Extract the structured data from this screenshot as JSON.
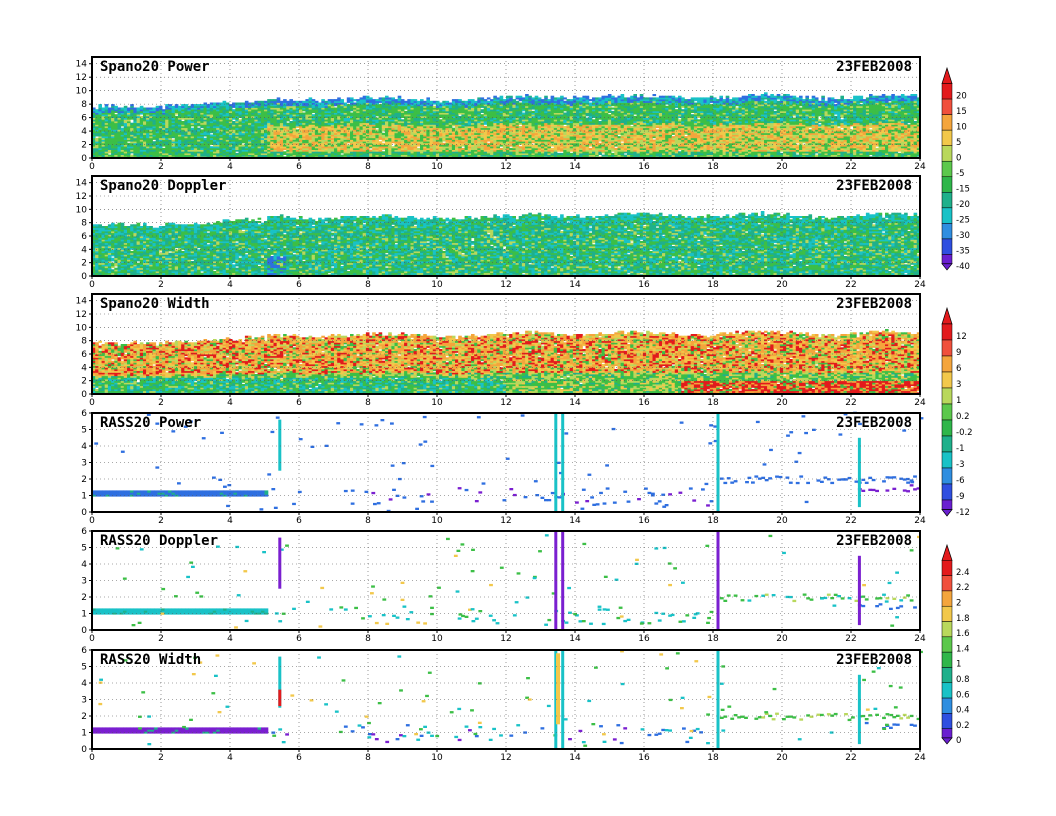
{
  "chart_data": [
    {
      "type": "heatmap",
      "title": "Spano20  Power",
      "date": "23FEB2008",
      "x_ticks": [
        "0",
        "2",
        "4",
        "6",
        "8",
        "10",
        "12",
        "14",
        "16",
        "18",
        "20",
        "22",
        "24"
      ],
      "y_ticks": [
        "0",
        "2",
        "4",
        "6",
        "8",
        "10",
        "12",
        "14"
      ],
      "xlim": [
        0,
        24
      ],
      "ylim": [
        0,
        15
      ],
      "colorbar_id": "cb1"
    },
    {
      "type": "heatmap",
      "title": "Spano20  Doppler",
      "date": "23FEB2008",
      "x_ticks": [
        "0",
        "2",
        "4",
        "6",
        "8",
        "10",
        "12",
        "14",
        "16",
        "18",
        "20",
        "22",
        "24"
      ],
      "y_ticks": [
        "0",
        "2",
        "4",
        "6",
        "8",
        "10",
        "12",
        "14"
      ],
      "xlim": [
        0,
        24
      ],
      "ylim": [
        0,
        15
      ],
      "colorbar_id": "cb1"
    },
    {
      "type": "heatmap",
      "title": "Spano20  Width",
      "date": "23FEB2008",
      "x_ticks": [
        "0",
        "2",
        "4",
        "6",
        "8",
        "10",
        "12",
        "14",
        "16",
        "18",
        "20",
        "22",
        "24"
      ],
      "y_ticks": [
        "0",
        "2",
        "4",
        "6",
        "8",
        "10",
        "12",
        "14"
      ],
      "xlim": [
        0,
        24
      ],
      "ylim": [
        0,
        15
      ],
      "colorbar_id": "cb2"
    },
    {
      "type": "heatmap",
      "title": "RASS20  Power",
      "date": "23FEB2008",
      "x_ticks": [
        "0",
        "2",
        "4",
        "6",
        "8",
        "10",
        "12",
        "14",
        "16",
        "18",
        "20",
        "22",
        "24"
      ],
      "y_ticks": [
        "0",
        "1",
        "2",
        "3",
        "4",
        "5",
        "6"
      ],
      "xlim": [
        0,
        24
      ],
      "ylim": [
        0,
        6
      ],
      "colorbar_id": "cb2"
    },
    {
      "type": "heatmap",
      "title": "RASS20  Doppler",
      "date": "23FEB2008",
      "x_ticks": [
        "0",
        "2",
        "4",
        "6",
        "8",
        "10",
        "12",
        "14",
        "16",
        "18",
        "20",
        "22",
        "24"
      ],
      "y_ticks": [
        "0",
        "1",
        "2",
        "3",
        "4",
        "5",
        "6"
      ],
      "xlim": [
        0,
        24
      ],
      "ylim": [
        0,
        6
      ],
      "colorbar_id": "cb3"
    },
    {
      "type": "heatmap",
      "title": "RASS20  Width",
      "date": "23FEB2008",
      "x_ticks": [
        "0",
        "2",
        "4",
        "6",
        "8",
        "10",
        "12",
        "14",
        "16",
        "18",
        "20",
        "22",
        "24"
      ],
      "y_ticks": [
        "0",
        "1",
        "2",
        "3",
        "4",
        "5",
        "6"
      ],
      "xlim": [
        0,
        24
      ],
      "ylim": [
        0,
        6
      ],
      "colorbar_id": "cb3"
    }
  ],
  "colorbars": [
    {
      "id": "cb1",
      "labels": [
        "20",
        "15",
        "10",
        "5",
        "0",
        "-5",
        "-15",
        "-20",
        "-25",
        "-30",
        "-35",
        "-40"
      ],
      "colors": [
        "#e31a1c",
        "#f0503c",
        "#f4a53c",
        "#f2c84b",
        "#b9d85c",
        "#5cc84c",
        "#2fb64a",
        "#1fb08b",
        "#19c2c7",
        "#2f8ee0",
        "#2f4fe0",
        "#6a1fd0"
      ]
    },
    {
      "id": "cb2",
      "labels": [
        "12",
        "9",
        "6",
        "3",
        "1",
        "0.2",
        "-0.2",
        "-1",
        "-3",
        "-6",
        "-9",
        "-12"
      ],
      "colors": [
        "#e31a1c",
        "#f0503c",
        "#f4a53c",
        "#f2c84b",
        "#b9d85c",
        "#5cc84c",
        "#2fb64a",
        "#1fb08b",
        "#19c2c7",
        "#2f8ee0",
        "#2f4fe0",
        "#6a1fd0"
      ]
    },
    {
      "id": "cb3",
      "labels": [
        "2.4",
        "2.2",
        "2",
        "1.8",
        "1.6",
        "1.4",
        "1",
        "0.8",
        "0.6",
        "0.4",
        "0.2",
        "0"
      ],
      "colors": [
        "#e31a1c",
        "#f0503c",
        "#f4a53c",
        "#f2c84b",
        "#b9d85c",
        "#5cc84c",
        "#2fb64a",
        "#1fb08b",
        "#19c2c7",
        "#2f8ee0",
        "#2f4fe0",
        "#6a1fd0"
      ]
    }
  ],
  "palette": {
    "red": "#e31a1c",
    "orange": "#f4a53c",
    "yellow": "#f2c84b",
    "lightgreen": "#b9d85c",
    "green": "#3cbf46",
    "teal": "#1fb08b",
    "cyan": "#19c2c7",
    "blue": "#2f6fe0",
    "purple": "#7a1fd0"
  }
}
